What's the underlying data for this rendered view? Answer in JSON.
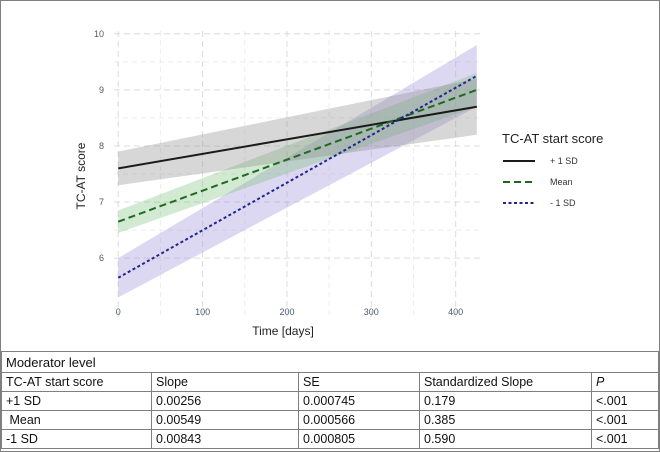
{
  "chart_data": {
    "type": "line",
    "xlabel": "Time [days]",
    "ylabel": "TC-AT score",
    "xlim": [
      -5,
      430
    ],
    "ylim": [
      4.95,
      10.05
    ],
    "xticks": [
      0,
      100,
      200,
      300,
      400
    ],
    "yticks": [
      6,
      7,
      8,
      9,
      10
    ],
    "x_range": [
      0,
      425
    ],
    "grid": true,
    "legend_title": "TC-AT start score",
    "legend_position": "right",
    "series": [
      {
        "name": "+ 1 SD",
        "y_start": 7.6,
        "y_end": 8.7,
        "band_start": [
          7.3,
          7.9
        ],
        "band_end": [
          8.2,
          9.2
        ],
        "color": "#1a1a1a",
        "band_color": "#8c8c8c",
        "dash": "solid"
      },
      {
        "name": "Mean",
        "y_start": 6.65,
        "y_end": 9.0,
        "band_start": [
          6.45,
          6.85
        ],
        "band_end": [
          8.7,
          9.3
        ],
        "color": "#1e6a1e",
        "band_color": "#7fc07f",
        "dash": "dashed"
      },
      {
        "name": "- 1 SD",
        "y_start": 5.65,
        "y_end": 9.25,
        "band_start": [
          5.3,
          6.0
        ],
        "band_end": [
          8.7,
          9.8
        ],
        "color": "#24248f",
        "band_color": "#9a8fd6",
        "dash": "dotted"
      }
    ]
  },
  "table": {
    "caption": "Moderator level",
    "headers": [
      "TC-AT start score",
      "Slope",
      "SE",
      "Standardized Slope",
      "P"
    ],
    "rows": [
      [
        "+1 SD",
        "0.00256",
        "0.000745",
        "0.179",
        "<.001"
      ],
      [
        " Mean",
        "0.00549",
        "0.000566",
        "0.385",
        "<.001"
      ],
      [
        "-1 SD",
        "0.00843",
        "0.000805",
        "0.590",
        "<.001"
      ]
    ]
  }
}
